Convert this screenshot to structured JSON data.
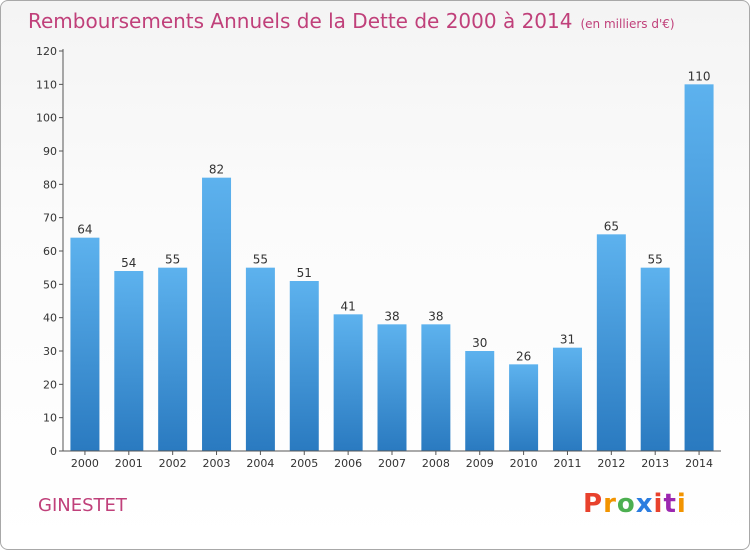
{
  "header": {
    "title": "Remboursements Annuels de la Dette de 2000 à 2014",
    "unit": "(en milliers d'€)"
  },
  "footer": {
    "commune": "GINESTET",
    "logo": [
      "P",
      "r",
      "o",
      "x",
      "i",
      "t",
      "i"
    ],
    "logo_colors": [
      "#e8412c",
      "#f29400",
      "#4caf50",
      "#2b7de0",
      "#e8412c",
      "#9c27b0",
      "#f29400"
    ]
  },
  "chart_data": {
    "type": "bar",
    "title": "Remboursements Annuels de la Dette de 2000 à 2014",
    "subtitle": "(en milliers d'€)",
    "categories": [
      "2000",
      "2001",
      "2002",
      "2003",
      "2004",
      "2005",
      "2006",
      "2007",
      "2008",
      "2009",
      "2010",
      "2011",
      "2012",
      "2013",
      "2014"
    ],
    "values": [
      64,
      54,
      55,
      82,
      55,
      51,
      41,
      38,
      38,
      30,
      26,
      31,
      65,
      55,
      110
    ],
    "ylim": [
      0,
      120
    ],
    "yticks": [
      0,
      10,
      20,
      30,
      40,
      50,
      60,
      70,
      80,
      90,
      100,
      110,
      120
    ],
    "grid": false,
    "bar_color": "#4a9de0"
  }
}
